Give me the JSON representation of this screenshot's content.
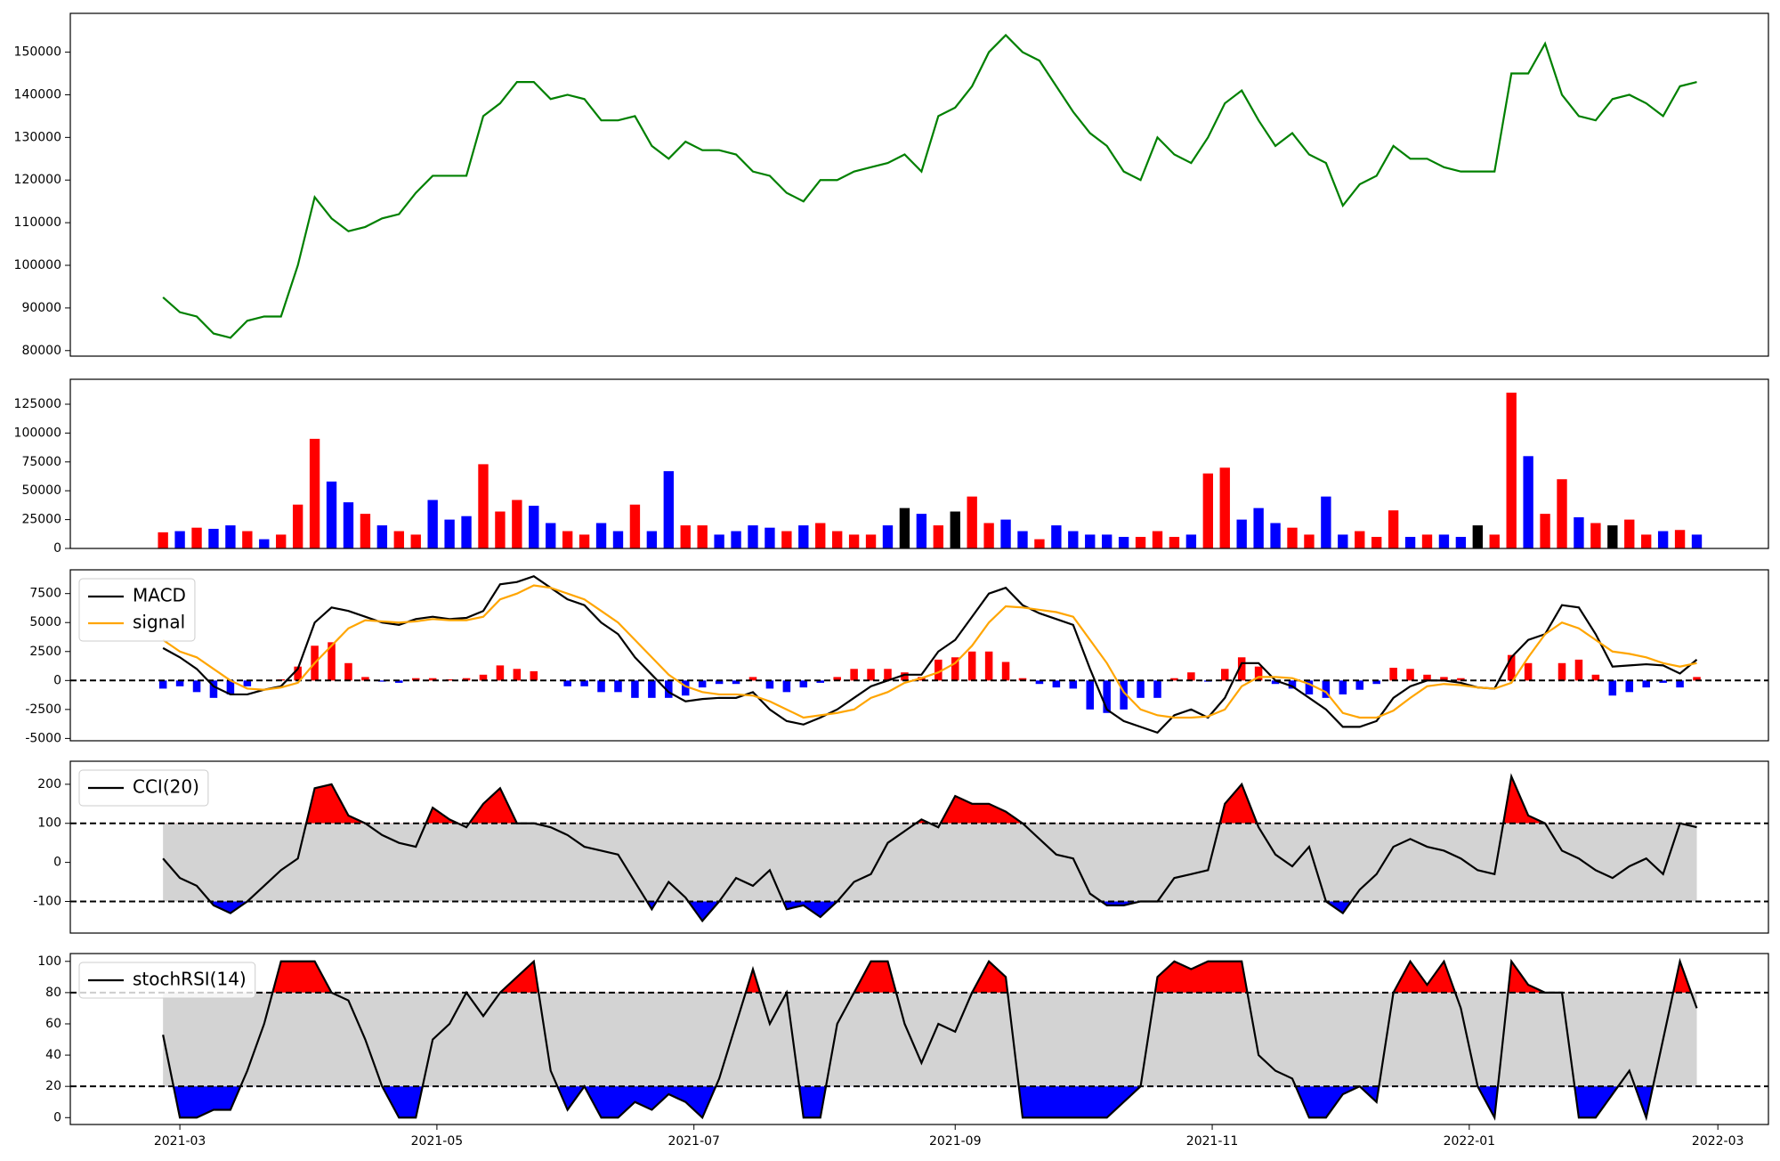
{
  "chart_data": [
    {
      "type": "line",
      "series": [
        {
          "color": "green",
          "values": [
            92500,
            89000,
            88000,
            84000,
            83000,
            87000,
            88000,
            88000,
            100000,
            116000,
            111000,
            108000,
            109000,
            111000,
            112000,
            117000,
            121000,
            121000,
            121000,
            135000,
            138000,
            143000,
            143000,
            139000,
            140000,
            139000,
            134000,
            134000,
            135000,
            128000,
            125000,
            129000,
            127000,
            127000,
            126000,
            122000,
            121000,
            117000,
            115000,
            120000,
            120000,
            122000,
            123000,
            124000,
            126000,
            122000,
            135000,
            137000,
            142000,
            150000,
            154000,
            150000,
            148000,
            142000,
            136000,
            131000,
            128000,
            122000,
            120000,
            130000,
            126000,
            124000,
            130000,
            138000,
            141000,
            134000,
            128000,
            131000,
            126000,
            124000,
            114000,
            119000,
            121000,
            128000,
            125000,
            125000,
            123000,
            122000,
            122000,
            122000,
            145000,
            145000,
            152000,
            140000,
            135000,
            134000,
            139000,
            140000,
            138000,
            135000,
            142000,
            143000
          ]
        }
      ],
      "xlim": [
        -5.5,
        95.25
      ],
      "ylim": [
        78700,
        159100
      ],
      "yticks": [
        80000,
        90000,
        100000,
        110000,
        120000,
        130000,
        140000,
        150000
      ]
    },
    {
      "type": "bar",
      "values": [
        14000,
        15000,
        18000,
        17000,
        20000,
        15000,
        8000,
        12000,
        38000,
        95000,
        58000,
        40000,
        30000,
        20000,
        15000,
        12000,
        42000,
        25000,
        28000,
        73000,
        32000,
        42000,
        37000,
        22000,
        15000,
        12000,
        22000,
        15000,
        38000,
        15000,
        67000,
        20000,
        20000,
        12000,
        15000,
        20000,
        18000,
        15000,
        20000,
        22000,
        15000,
        12000,
        12000,
        20000,
        35000,
        30000,
        20000,
        32000,
        45000,
        22000,
        25000,
        15000,
        8000,
        20000,
        15000,
        12000,
        12000,
        10000,
        10000,
        15000,
        10000,
        12000,
        65000,
        70000,
        25000,
        35000,
        22000,
        18000,
        12000,
        45000,
        12000,
        15000,
        10000,
        33000,
        10000,
        12000,
        12000,
        10000,
        20000,
        12000,
        135000,
        80000,
        30000,
        60000,
        27000,
        22000,
        20000,
        25000,
        12000,
        15000,
        16000,
        12000
      ],
      "colors": [
        "red",
        "blue",
        "red",
        "blue",
        "blue",
        "red",
        "blue",
        "red",
        "red",
        "red",
        "blue",
        "blue",
        "red",
        "blue",
        "red",
        "red",
        "blue",
        "blue",
        "blue",
        "red",
        "red",
        "red",
        "blue",
        "blue",
        "red",
        "red",
        "blue",
        "blue",
        "red",
        "blue",
        "blue",
        "red",
        "red",
        "blue",
        "blue",
        "blue",
        "blue",
        "red",
        "blue",
        "red",
        "red",
        "red",
        "red",
        "blue",
        "black",
        "blue",
        "red",
        "black",
        "red",
        "red",
        "blue",
        "blue",
        "red",
        "blue",
        "blue",
        "blue",
        "blue",
        "blue",
        "red",
        "red",
        "red",
        "blue",
        "red",
        "red",
        "blue",
        "blue",
        "blue",
        "red",
        "red",
        "blue",
        "blue",
        "red",
        "red",
        "red",
        "blue",
        "red",
        "blue",
        "blue",
        "black",
        "red",
        "red",
        "blue",
        "red",
        "red",
        "blue",
        "red",
        "black",
        "red",
        "red",
        "blue",
        "red",
        "blue"
      ],
      "xlim": [
        -5.5,
        95.25
      ],
      "ylim": [
        0,
        146600
      ],
      "yticks": [
        0,
        25000,
        50000,
        75000,
        100000,
        125000
      ]
    },
    {
      "type": "macd",
      "series": [
        {
          "name": "MACD",
          "color": "black",
          "values": [
            2800,
            2000,
            1000,
            -500,
            -1200,
            -1200,
            -800,
            -500,
            1000,
            5000,
            6300,
            6000,
            5500,
            5000,
            4800,
            5300,
            5500,
            5300,
            5400,
            6000,
            8300,
            8500,
            9000,
            8000,
            7000,
            6500,
            5000,
            4000,
            2000,
            500,
            -1000,
            -1800,
            -1600,
            -1500,
            -1500,
            -1000,
            -2500,
            -3500,
            -3800,
            -3200,
            -2500,
            -1500,
            -500,
            0,
            500,
            500,
            2500,
            3500,
            5500,
            7500,
            8000,
            6500,
            5800,
            5300,
            4800,
            1000,
            -2500,
            -3500,
            -4000,
            -4500,
            -3000,
            -2500,
            -3200,
            -1500,
            1500,
            1500,
            0,
            -500,
            -1500,
            -2500,
            -4000,
            -4000,
            -3500,
            -1500,
            -500,
            0,
            0,
            -200,
            -600,
            -700,
            2000,
            3500,
            4000,
            6500,
            6300,
            4000,
            1200,
            1300,
            1400,
            1300,
            600,
            1800
          ]
        },
        {
          "name": "signal",
          "color": "orange",
          "values": [
            3500,
            2500,
            2000,
            1000,
            0,
            -700,
            -800,
            -600,
            -200,
            1500,
            3000,
            4500,
            5200,
            5100,
            5000,
            5100,
            5300,
            5200,
            5200,
            5500,
            7000,
            7500,
            8200,
            8000,
            7500,
            7000,
            6000,
            5000,
            3500,
            2000,
            500,
            -500,
            -1000,
            -1200,
            -1200,
            -1300,
            -1800,
            -2500,
            -3200,
            -3000,
            -2800,
            -2500,
            -1500,
            -1000,
            -200,
            200,
            700,
            1500,
            3000,
            5000,
            6400,
            6300,
            6100,
            5900,
            5500,
            3500,
            1500,
            -1000,
            -2500,
            -3000,
            -3200,
            -3200,
            -3100,
            -2500,
            -500,
            300,
            300,
            200,
            -300,
            -1000,
            -2800,
            -3200,
            -3200,
            -2600,
            -1500,
            -500,
            -300,
            -400,
            -600,
            -700,
            -200,
            2000,
            4000,
            5000,
            4500,
            3500,
            2500,
            2300,
            2000,
            1500,
            1200,
            1500
          ]
        }
      ],
      "histogram": {
        "positive_color": "red",
        "negative_color": "blue",
        "values": [
          -700,
          -500,
          -1000,
          -1500,
          -1200,
          -500,
          0,
          100,
          1200,
          3000,
          3300,
          1500,
          300,
          -100,
          -200,
          200,
          200,
          100,
          200,
          500,
          1300,
          1000,
          800,
          0,
          -500,
          -500,
          -1000,
          -1000,
          -1500,
          -1500,
          -1500,
          -1300,
          -600,
          -300,
          -300,
          300,
          -700,
          -1000,
          -600,
          -200,
          300,
          1000,
          1000,
          1000,
          700,
          300,
          1800,
          2000,
          2500,
          2500,
          1600,
          200,
          -300,
          -600,
          -700,
          -2500,
          -2800,
          -2500,
          -1500,
          -1500,
          200,
          700,
          -100,
          1000,
          2000,
          1200,
          -300,
          -700,
          -1200,
          -1500,
          -1200,
          -800,
          -300,
          1100,
          1000,
          500,
          300,
          200,
          0,
          0,
          2200,
          1500,
          0,
          1500,
          1800,
          500,
          -1300,
          -1000,
          -600,
          -200,
          -600,
          300
        ]
      },
      "hlines": [
        0
      ],
      "legend": "upper left",
      "xlim": [
        -5.5,
        95.25
      ],
      "ylim": [
        -5200,
        9550
      ],
      "yticks": [
        -5000,
        -2500,
        0,
        2500,
        5000,
        7500
      ]
    },
    {
      "type": "oscillator",
      "series": [
        {
          "name": "CCI(20)",
          "color": "black",
          "values": [
            10,
            -40,
            -60,
            -110,
            -130,
            -100,
            -60,
            -20,
            10,
            190,
            200,
            120,
            100,
            70,
            50,
            40,
            140,
            110,
            90,
            150,
            190,
            100,
            100,
            90,
            70,
            40,
            30,
            20,
            -50,
            -120,
            -50,
            -90,
            -150,
            -100,
            -40,
            -60,
            -20,
            -120,
            -110,
            -140,
            -100,
            -50,
            -30,
            50,
            80,
            110,
            90,
            170,
            150,
            150,
            130,
            100,
            60,
            20,
            10,
            -80,
            -110,
            -110,
            -100,
            -100,
            -40,
            -30,
            -20,
            150,
            200,
            90,
            20,
            -10,
            40,
            -100,
            -130,
            -70,
            -30,
            40,
            60,
            40,
            30,
            10,
            -20,
            -30,
            220,
            120,
            100,
            30,
            10,
            -20,
            -40,
            -10,
            10,
            -30,
            100,
            90
          ]
        }
      ],
      "levels": [
        -100,
        100
      ],
      "band_color": "lightgray",
      "upper_color": "red",
      "lower_color": "blue",
      "legend": "upper left",
      "xlim": [
        -5.5,
        95.25
      ],
      "ylim": [
        -181,
        259
      ],
      "yticks": [
        -100,
        0,
        100,
        200
      ]
    },
    {
      "type": "oscillator",
      "series": [
        {
          "name": "stochRSI(14)",
          "color": "black",
          "values": [
            53,
            0,
            0,
            5,
            5,
            30,
            60,
            100,
            100,
            100,
            80,
            75,
            50,
            20,
            0,
            0,
            50,
            60,
            80,
            65,
            80,
            90,
            100,
            30,
            5,
            20,
            0,
            0,
            10,
            5,
            15,
            10,
            0,
            25,
            60,
            95,
            60,
            80,
            0,
            0,
            60,
            80,
            100,
            100,
            60,
            35,
            60,
            55,
            80,
            100,
            90,
            0,
            0,
            0,
            0,
            0,
            0,
            10,
            20,
            90,
            100,
            95,
            100,
            100,
            100,
            40,
            30,
            25,
            0,
            0,
            15,
            20,
            10,
            80,
            100,
            85,
            100,
            70,
            20,
            0,
            100,
            85,
            80,
            80,
            0,
            0,
            15,
            30,
            0,
            50,
            100,
            70
          ]
        }
      ],
      "levels": [
        20,
        80
      ],
      "band_color": "lightgray",
      "upper_color": "red",
      "lower_color": "blue",
      "legend": "upper left",
      "xlim": [
        -5.5,
        95.25
      ],
      "ylim": [
        -4.4,
        105
      ],
      "yticks": [
        0,
        20,
        40,
        60,
        80,
        100
      ],
      "xticks": [
        {
          "value": 1,
          "label": "2021-03"
        },
        {
          "value": 16.25,
          "label": "2021-05"
        },
        {
          "value": 31.5,
          "label": "2021-07"
        },
        {
          "value": 47,
          "label": "2021-09"
        },
        {
          "value": 62.25,
          "label": "2021-11"
        },
        {
          "value": 77.5,
          "label": "2022-01"
        },
        {
          "value": 92.25,
          "label": "2022-03"
        }
      ]
    }
  ]
}
